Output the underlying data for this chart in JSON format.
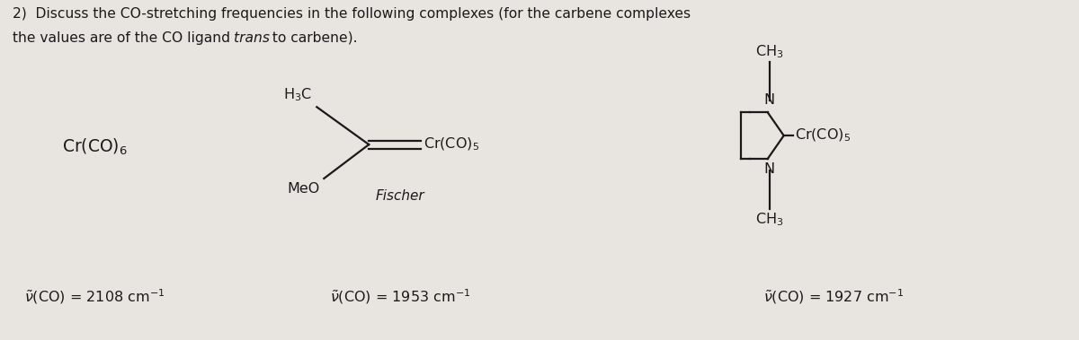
{
  "bg_color": "#e8e5e0",
  "text_color": "#1a1a1a",
  "figsize": [
    12.0,
    3.79
  ],
  "dpi": 100,
  "title_line1": "2)  Discuss the CO-stretching frequencies in the following complexes (for the carbene complexes",
  "title_line2_pre_italic": "the values are of the CO ligand ",
  "title_line2_italic": "trans",
  "title_line2_post_italic": " to carbene).",
  "c1_label": "Cr(CO)$_6$",
  "c1_freq_text": "$\\tilde{\\nu}$(CO) = 2108 cm$^{-1}$",
  "c2_h3c": "H$_3$C",
  "c2_meo": "MeO",
  "c2_crco5": "Cr(CO)$_5$",
  "c2_name": "Fischer",
  "c2_freq_text": "$\\tilde{\\nu}$(CO) = 1953 cm$^{-1}$",
  "c3_ch3_top": "CH$_3$",
  "c3_n_top": "N",
  "c3_n_bot": "N",
  "c3_ch3_bot": "CH$_3$",
  "c3_crco5": "Cr(CO)$_5$",
  "c3_freq_text": "$\\tilde{\\nu}$(CO) = 1927 cm$^{-1}$"
}
